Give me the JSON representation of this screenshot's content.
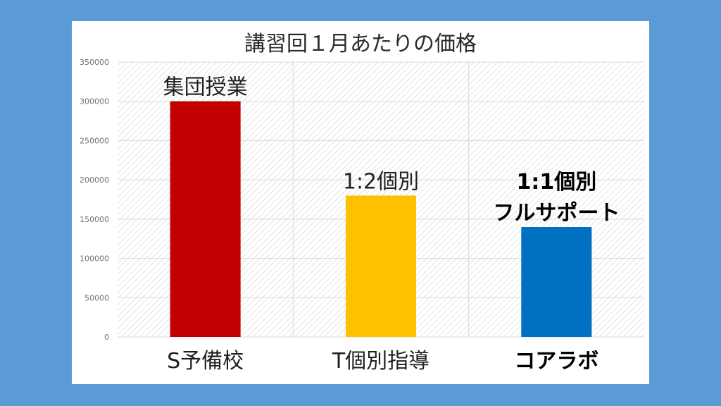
{
  "chart_data": {
    "type": "bar",
    "title": "講習回１月あたりの価格",
    "categories": [
      "S予備校",
      "T個別指導",
      "コアラボ"
    ],
    "values": [
      300000,
      180000,
      140000
    ],
    "ylim": [
      0,
      350000
    ],
    "yticks": [
      "0",
      "50000",
      "100000",
      "150000",
      "200000",
      "250000",
      "300000",
      "350000"
    ],
    "data_labels": [
      [
        "集団授業"
      ],
      [
        "1:2個別"
      ],
      [
        "1:1個別",
        "フルサポート"
      ]
    ],
    "bar_colors": [
      "#c00000",
      "#ffc000",
      "#0070c0"
    ],
    "bold_index": 2,
    "grid": true,
    "legend": "none"
  }
}
